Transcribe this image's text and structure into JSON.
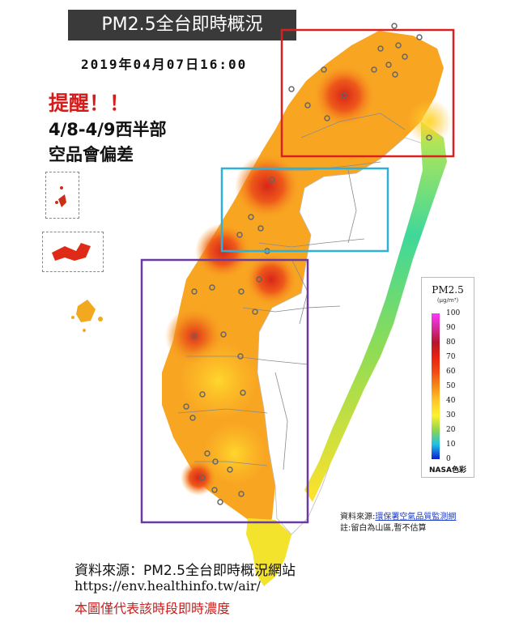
{
  "title": "PM2.5全台即時概況",
  "datetime": "2019年04月07日16:00",
  "reminder": {
    "heading": "提醒！！",
    "line1": "4/8-4/9西半部",
    "line2": "空品會偏差"
  },
  "legend": {
    "title": "PM2.5",
    "unit": "(μg/m³)",
    "ticks": [
      "100",
      "90",
      "80",
      "70",
      "60",
      "50",
      "40",
      "30",
      "20",
      "10",
      "0"
    ],
    "brand": "NASA色彩"
  },
  "source_note": {
    "prefix": "資料來源:",
    "link_text": "環保署空氣品質監測網",
    "line2": "註:留白為山區,暫不估算"
  },
  "footer": {
    "source_line": "資料來源：PM2.5全台即時概況網站",
    "url": "https://env.healthinfo.tw/air/",
    "disclaimer": "本圖僅代表該時段即時濃度"
  },
  "highlight_colors": {
    "north": "#d92121",
    "central": "#2fb0d8",
    "south": "#6b3aa0"
  }
}
